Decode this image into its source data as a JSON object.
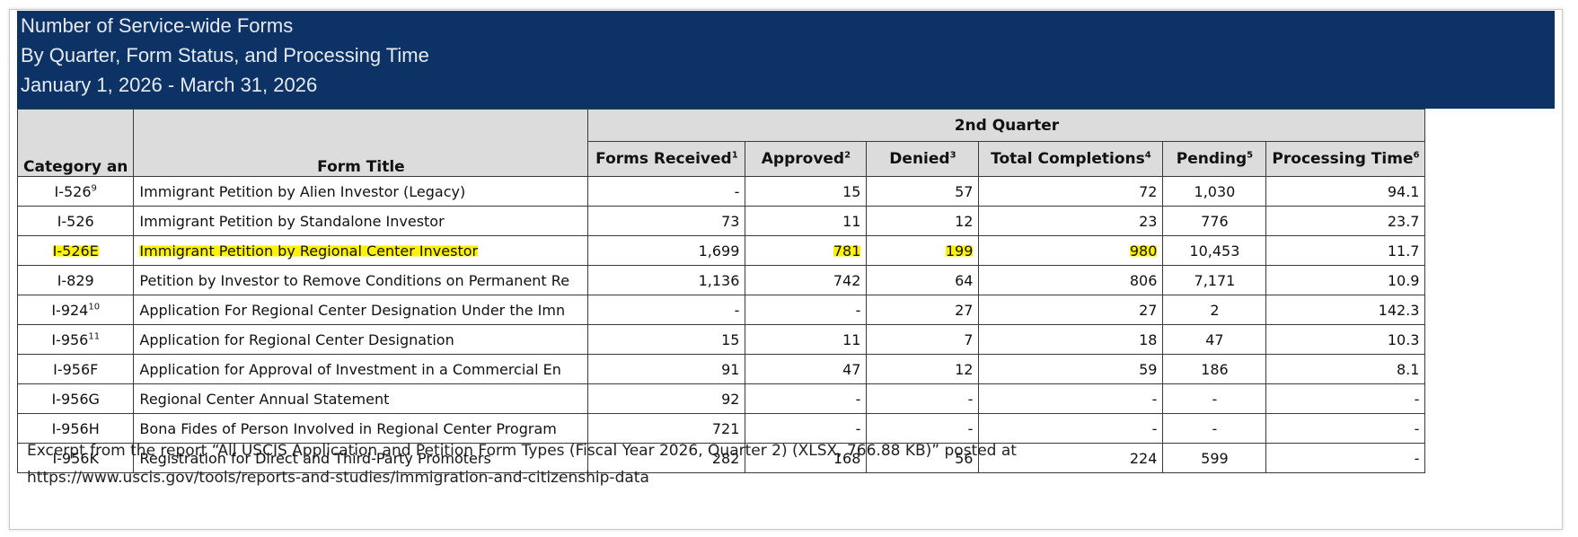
{
  "banner": {
    "line1": "Number of Service-wide Forms",
    "line2": "By Quarter, Form Status, and Processing Time",
    "line3": "January 1, 2026 - March 31, 2026"
  },
  "table": {
    "quarter": "2nd Quarter",
    "col_category": "Category an",
    "col_title": "Form Title",
    "col_received": "Forms Received",
    "col_received_sup": "1",
    "col_approved": "Approved",
    "col_approved_sup": "2",
    "col_denied": "Denied",
    "col_denied_sup": "3",
    "col_completions": "Total Completions",
    "col_completions_sup": "4",
    "col_pending": "Pending",
    "col_pending_sup": "5",
    "col_time": "Processing Time",
    "col_time_sup": "6",
    "highlight_color": "#fff200",
    "header_bg": "#dcdcdc",
    "banner_bg": "#0c3266",
    "rows": [
      {
        "code": "I-526",
        "sup": "9",
        "title": "Immigrant Petition by Alien Investor (Legacy)",
        "received": "-",
        "approved": "15",
        "denied": "57",
        "completions": "72",
        "pending": "1,030",
        "time": "94.1",
        "highlighted": false
      },
      {
        "code": "I-526",
        "sup": "",
        "title": "Immigrant Petition by Standalone Investor",
        "received": "73",
        "approved": "11",
        "denied": "12",
        "completions": "23",
        "pending": "776",
        "time": "23.7",
        "highlighted": false
      },
      {
        "code": "I-526E",
        "sup": "",
        "title": "Immigrant Petition by Regional Center Investor",
        "received": "1,699",
        "approved": "781",
        "denied": "199",
        "completions": "980",
        "pending": "10,453",
        "time": "11.7",
        "highlighted": true
      },
      {
        "code": "I-829",
        "sup": "",
        "title": "Petition by Investor to Remove Conditions on Permanent Re",
        "received": "1,136",
        "approved": "742",
        "denied": "64",
        "completions": "806",
        "pending": "7,171",
        "time": "10.9",
        "highlighted": false
      },
      {
        "code": "I-924",
        "sup": "10",
        "title": "Application For Regional Center Designation Under the Imn",
        "received": "-",
        "approved": "-",
        "denied": "27",
        "completions": "27",
        "pending": "2",
        "time": "142.3",
        "highlighted": false
      },
      {
        "code": "I-956",
        "sup": "11",
        "title": "Application for Regional Center Designation",
        "received": "15",
        "approved": "11",
        "denied": "7",
        "completions": "18",
        "pending": "47",
        "time": "10.3",
        "highlighted": false
      },
      {
        "code": "I-956F",
        "sup": "",
        "title": "Application for Approval of Investment in a Commercial En",
        "received": "91",
        "approved": "47",
        "denied": "12",
        "completions": "59",
        "pending": "186",
        "time": "8.1",
        "highlighted": false
      },
      {
        "code": "I-956G",
        "sup": "",
        "title": "Regional Center Annual Statement",
        "received": "92",
        "approved": "-",
        "denied": "-",
        "completions": "-",
        "pending": "-",
        "time": "-",
        "highlighted": false
      },
      {
        "code": "I-956H",
        "sup": "",
        "title": "Bona Fides of Person Involved in Regional Center Program",
        "received": "721",
        "approved": "-",
        "denied": "-",
        "completions": "-",
        "pending": "-",
        "time": "-",
        "highlighted": false
      },
      {
        "code": "I-956K",
        "sup": "",
        "title": "Registration for Direct and Third-Party Promoters",
        "received": "282",
        "approved": "168",
        "denied": "56",
        "completions": "224",
        "pending": "599",
        "time": "-",
        "highlighted": false
      }
    ]
  },
  "note": {
    "line1": "Excerpt from the report “All USCIS Application and Petition Form Types (Fiscal Year 2026, Quarter 2) (XLSX, 766.88 KB)” posted at",
    "line2": "https://www.uscis.gov/tools/reports-and-studies/immigration-and-citizenship-data"
  }
}
